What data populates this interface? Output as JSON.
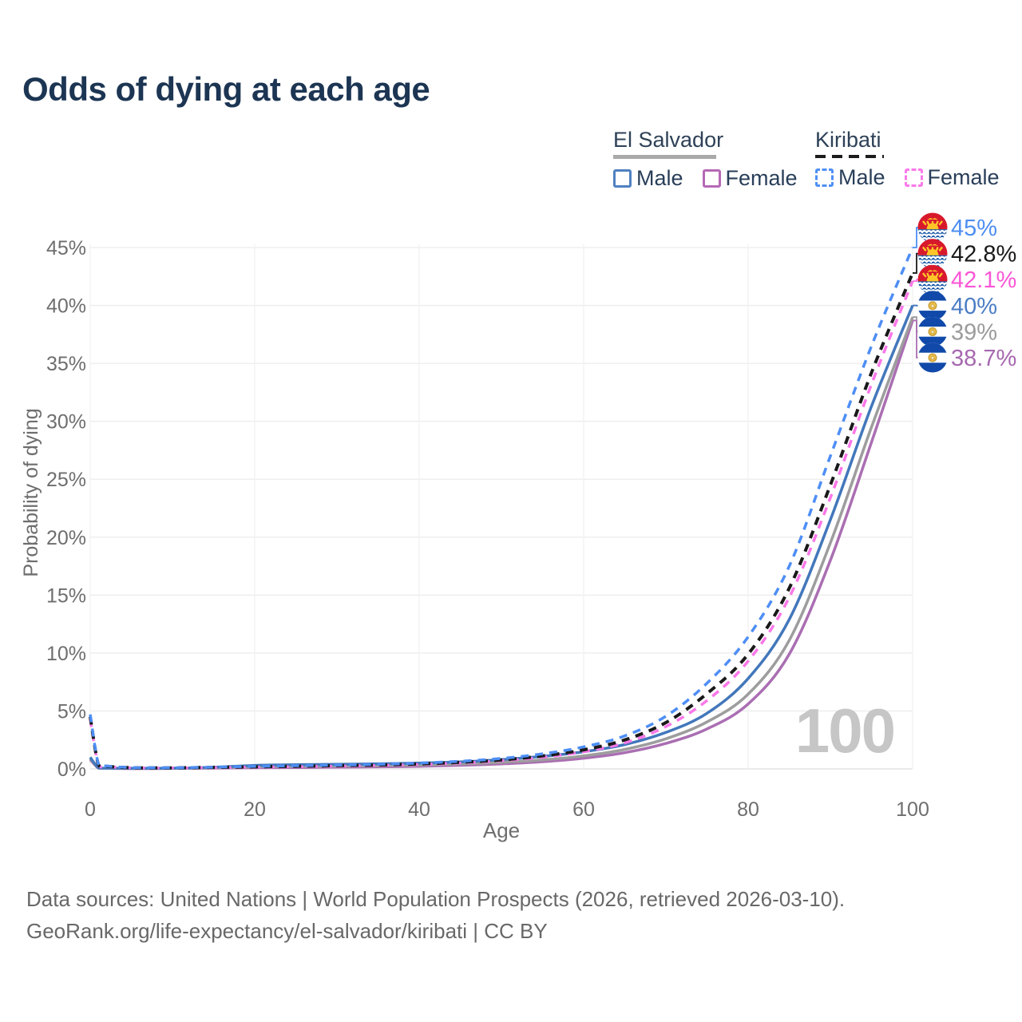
{
  "title": "Odds of dying at each age",
  "legend": {
    "groups": [
      {
        "label": "El Salvador",
        "line_style": "solid",
        "underline_color": "#a9a9a9",
        "items": [
          {
            "label": "Male",
            "color": "#5081c1"
          },
          {
            "label": "Female",
            "color": "#b669b6"
          }
        ]
      },
      {
        "label": "Kiribati",
        "line_style": "dashed",
        "underline_color": "#1c1c1c",
        "items": [
          {
            "label": "Male",
            "color": "#4f90f5"
          },
          {
            "label": "Female",
            "color": "#fb79e9"
          }
        ]
      }
    ]
  },
  "chart_data": {
    "type": "line",
    "title": "Odds of dying at each age",
    "xlabel": "Age",
    "ylabel": "Probability of dying",
    "xlim": [
      0,
      100
    ],
    "ylim_pct": [
      0,
      45
    ],
    "x_ticks": [
      0,
      20,
      40,
      60,
      80,
      100
    ],
    "y_ticks_pct": [
      0,
      5,
      10,
      15,
      20,
      25,
      30,
      35,
      40,
      45
    ],
    "grid": true,
    "legend_position": "top-right",
    "watermark": "100",
    "ages": [
      0,
      1,
      2,
      5,
      10,
      15,
      20,
      25,
      30,
      35,
      40,
      45,
      50,
      55,
      60,
      65,
      70,
      75,
      80,
      85,
      90,
      95,
      100
    ],
    "series": [
      {
        "name": "Kiribati Male",
        "country": "Kiribati",
        "sex": "Male",
        "color": "#4e8ef5",
        "dash": true,
        "flag": "kiribati",
        "end_label": "45%",
        "end_label_color": "#4d8ef2",
        "values_pct": [
          4.7,
          0.4,
          0.25,
          0.12,
          0.1,
          0.15,
          0.22,
          0.28,
          0.33,
          0.4,
          0.5,
          0.66,
          0.9,
          1.3,
          1.9,
          2.85,
          4.55,
          7.4,
          11.4,
          17.5,
          27.0,
          36.5,
          45.0
        ]
      },
      {
        "name": "Kiribati Both sexes",
        "country": "Kiribati",
        "sex": "Both",
        "color": "#191919",
        "dash": true,
        "flag": "kiribati",
        "end_label": "42.8%",
        "end_label_color": "#191919",
        "values_pct": [
          4.5,
          0.35,
          0.22,
          0.1,
          0.09,
          0.13,
          0.18,
          0.23,
          0.28,
          0.34,
          0.43,
          0.57,
          0.78,
          1.12,
          1.65,
          2.5,
          4.0,
          6.5,
          9.9,
          15.6,
          24.5,
          34.2,
          42.8
        ]
      },
      {
        "name": "Kiribati Female",
        "country": "Kiribati",
        "sex": "Female",
        "color": "#fa77e8",
        "dash": true,
        "flag": "kiribati",
        "end_label": "42.1%",
        "end_label_color": "#f956d6",
        "values_pct": [
          4.3,
          0.32,
          0.2,
          0.09,
          0.08,
          0.11,
          0.15,
          0.19,
          0.24,
          0.3,
          0.38,
          0.5,
          0.7,
          1.0,
          1.48,
          2.25,
          3.65,
          5.9,
          9.3,
          14.8,
          23.4,
          33.2,
          42.1
        ]
      },
      {
        "name": "El Salvador Male",
        "country": "El Salvador",
        "sex": "Male",
        "color": "#4377bb",
        "dash": false,
        "flag": "el-salvador",
        "end_label": "40%",
        "end_label_color": "#4a7dc4",
        "values_pct": [
          1.0,
          0.09,
          0.06,
          0.05,
          0.06,
          0.14,
          0.3,
          0.36,
          0.4,
          0.44,
          0.5,
          0.6,
          0.8,
          1.08,
          1.48,
          2.1,
          3.15,
          4.8,
          7.8,
          12.9,
          21.5,
          31.3,
          40.0
        ]
      },
      {
        "name": "El Salvador Both sexes",
        "country": "El Salvador",
        "sex": "Both",
        "color": "#9d9d9d",
        "dash": false,
        "flag": "el-salvador",
        "end_label": "39%",
        "end_label_color": "#9b9b9b",
        "values_pct": [
          0.9,
          0.08,
          0.05,
          0.04,
          0.05,
          0.1,
          0.19,
          0.23,
          0.26,
          0.29,
          0.34,
          0.43,
          0.57,
          0.78,
          1.12,
          1.68,
          2.6,
          4.05,
          6.45,
          11.1,
          19.5,
          29.5,
          39.0
        ]
      },
      {
        "name": "El Salvador Female",
        "country": "El Salvador",
        "sex": "Female",
        "color": "#aa6eb2",
        "dash": false,
        "flag": "el-salvador",
        "end_label": "38.7%",
        "end_label_color": "#a668af",
        "values_pct": [
          0.8,
          0.07,
          0.05,
          0.03,
          0.04,
          0.07,
          0.1,
          0.12,
          0.15,
          0.18,
          0.23,
          0.31,
          0.43,
          0.62,
          0.92,
          1.4,
          2.2,
          3.45,
          5.6,
          9.9,
          18.0,
          28.2,
          38.7
        ]
      }
    ],
    "flag_colors": {
      "kiribati": {
        "red": "#d8192c",
        "gold": "#ffc527",
        "blue": "#0b4ea2",
        "waves": "#ffffff"
      },
      "el_salvador": {
        "blue": "#1049a9",
        "white": "#ffffff",
        "emblem_gold": "#f0c04a",
        "emblem_ring": "#c8a23c"
      }
    },
    "grid_color": "#ececec",
    "axis_text_color": "#6e6e6e",
    "watermark_color": "#c6c6c6"
  },
  "footer": {
    "line1": "Data sources: United Nations | World Population Prospects (2026, retrieved 2026-03-10).",
    "line2": "GeoRank.org/life-expectancy/el-salvador/kiribati | CC BY"
  }
}
